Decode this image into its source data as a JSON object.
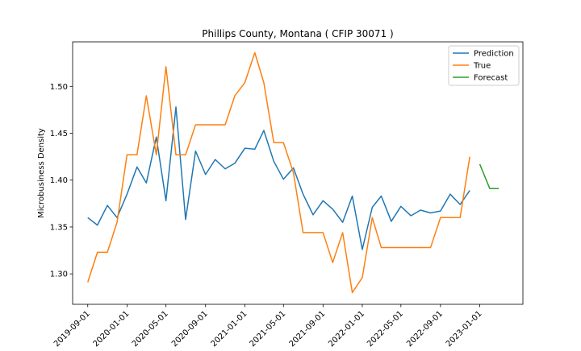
{
  "chart_data": {
    "type": "line",
    "title": "Phillips County, Montana ( CFIP 30071 )",
    "xlabel": "",
    "ylabel": "Microbusiness Density",
    "xlim": [
      "2019-07-16",
      "2023-05-15"
    ],
    "ylim": [
      1.2675,
      1.5475
    ],
    "x_ticks": [
      "2019-09-01",
      "2020-01-01",
      "2020-05-01",
      "2020-09-01",
      "2021-01-01",
      "2021-05-01",
      "2021-09-01",
      "2022-01-01",
      "2022-05-01",
      "2022-09-01",
      "2023-01-01"
    ],
    "y_ticks": [
      1.3,
      1.35,
      1.4,
      1.45,
      1.5
    ],
    "y_tick_labels": [
      "1.30",
      "1.35",
      "1.40",
      "1.45",
      "1.50"
    ],
    "legend": {
      "position": "top-right",
      "entries": [
        "Prediction",
        "True",
        "Forecast"
      ]
    },
    "grid": false,
    "series": [
      {
        "name": "Prediction",
        "color": "#1f77b4",
        "points": [
          [
            "2019-09-01",
            1.36
          ],
          [
            "2019-10-01",
            1.352
          ],
          [
            "2019-11-01",
            1.373
          ],
          [
            "2019-12-01",
            1.36
          ],
          [
            "2020-01-01",
            1.385
          ],
          [
            "2020-02-01",
            1.414
          ],
          [
            "2020-03-01",
            1.397
          ],
          [
            "2020-04-01",
            1.446
          ],
          [
            "2020-05-01",
            1.378
          ],
          [
            "2020-06-01",
            1.478
          ],
          [
            "2020-07-01",
            1.358
          ],
          [
            "2020-08-01",
            1.431
          ],
          [
            "2020-09-01",
            1.406
          ],
          [
            "2020-10-01",
            1.422
          ],
          [
            "2020-11-01",
            1.412
          ],
          [
            "2020-12-01",
            1.418
          ],
          [
            "2021-01-01",
            1.434
          ],
          [
            "2021-02-01",
            1.433
          ],
          [
            "2021-03-01",
            1.453
          ],
          [
            "2021-04-01",
            1.42
          ],
          [
            "2021-05-01",
            1.401
          ],
          [
            "2021-06-01",
            1.413
          ],
          [
            "2021-07-01",
            1.385
          ],
          [
            "2021-08-01",
            1.363
          ],
          [
            "2021-09-01",
            1.378
          ],
          [
            "2021-10-01",
            1.369
          ],
          [
            "2021-11-01",
            1.355
          ],
          [
            "2021-12-01",
            1.383
          ],
          [
            "2022-01-01",
            1.326
          ],
          [
            "2022-02-01",
            1.371
          ],
          [
            "2022-03-01",
            1.383
          ],
          [
            "2022-04-01",
            1.356
          ],
          [
            "2022-05-01",
            1.372
          ],
          [
            "2022-06-01",
            1.362
          ],
          [
            "2022-07-01",
            1.368
          ],
          [
            "2022-08-01",
            1.365
          ],
          [
            "2022-09-01",
            1.367
          ],
          [
            "2022-10-01",
            1.385
          ],
          [
            "2022-11-01",
            1.374
          ],
          [
            "2022-12-01",
            1.389
          ]
        ]
      },
      {
        "name": "True",
        "color": "#ff7f0e",
        "points": [
          [
            "2019-09-01",
            1.291
          ],
          [
            "2019-10-01",
            1.323
          ],
          [
            "2019-11-01",
            1.323
          ],
          [
            "2019-12-01",
            1.355
          ],
          [
            "2020-01-01",
            1.427
          ],
          [
            "2020-02-01",
            1.427
          ],
          [
            "2020-03-01",
            1.49
          ],
          [
            "2020-04-01",
            1.427
          ],
          [
            "2020-05-01",
            1.521
          ],
          [
            "2020-06-01",
            1.427
          ],
          [
            "2020-07-01",
            1.427
          ],
          [
            "2020-08-01",
            1.459
          ],
          [
            "2020-09-01",
            1.459
          ],
          [
            "2020-10-01",
            1.459
          ],
          [
            "2020-11-01",
            1.459
          ],
          [
            "2020-12-01",
            1.49
          ],
          [
            "2021-01-01",
            1.504
          ],
          [
            "2021-02-01",
            1.536
          ],
          [
            "2021-03-01",
            1.504
          ],
          [
            "2021-04-01",
            1.44
          ],
          [
            "2021-05-01",
            1.44
          ],
          [
            "2021-06-01",
            1.408
          ],
          [
            "2021-07-01",
            1.344
          ],
          [
            "2021-08-01",
            1.344
          ],
          [
            "2021-09-01",
            1.344
          ],
          [
            "2021-10-01",
            1.312
          ],
          [
            "2021-11-01",
            1.344
          ],
          [
            "2021-12-01",
            1.28
          ],
          [
            "2022-01-01",
            1.296
          ],
          [
            "2022-02-01",
            1.36
          ],
          [
            "2022-03-01",
            1.328
          ],
          [
            "2022-04-01",
            1.328
          ],
          [
            "2022-05-01",
            1.328
          ],
          [
            "2022-06-01",
            1.328
          ],
          [
            "2022-07-01",
            1.328
          ],
          [
            "2022-08-01",
            1.328
          ],
          [
            "2022-09-01",
            1.36
          ],
          [
            "2022-10-01",
            1.36
          ],
          [
            "2022-11-01",
            1.36
          ],
          [
            "2022-12-01",
            1.425
          ]
        ]
      },
      {
        "name": "Forecast",
        "color": "#2ca02c",
        "points": [
          [
            "2023-01-01",
            1.417
          ],
          [
            "2023-02-01",
            1.391
          ],
          [
            "2023-03-01",
            1.391
          ]
        ]
      }
    ]
  }
}
